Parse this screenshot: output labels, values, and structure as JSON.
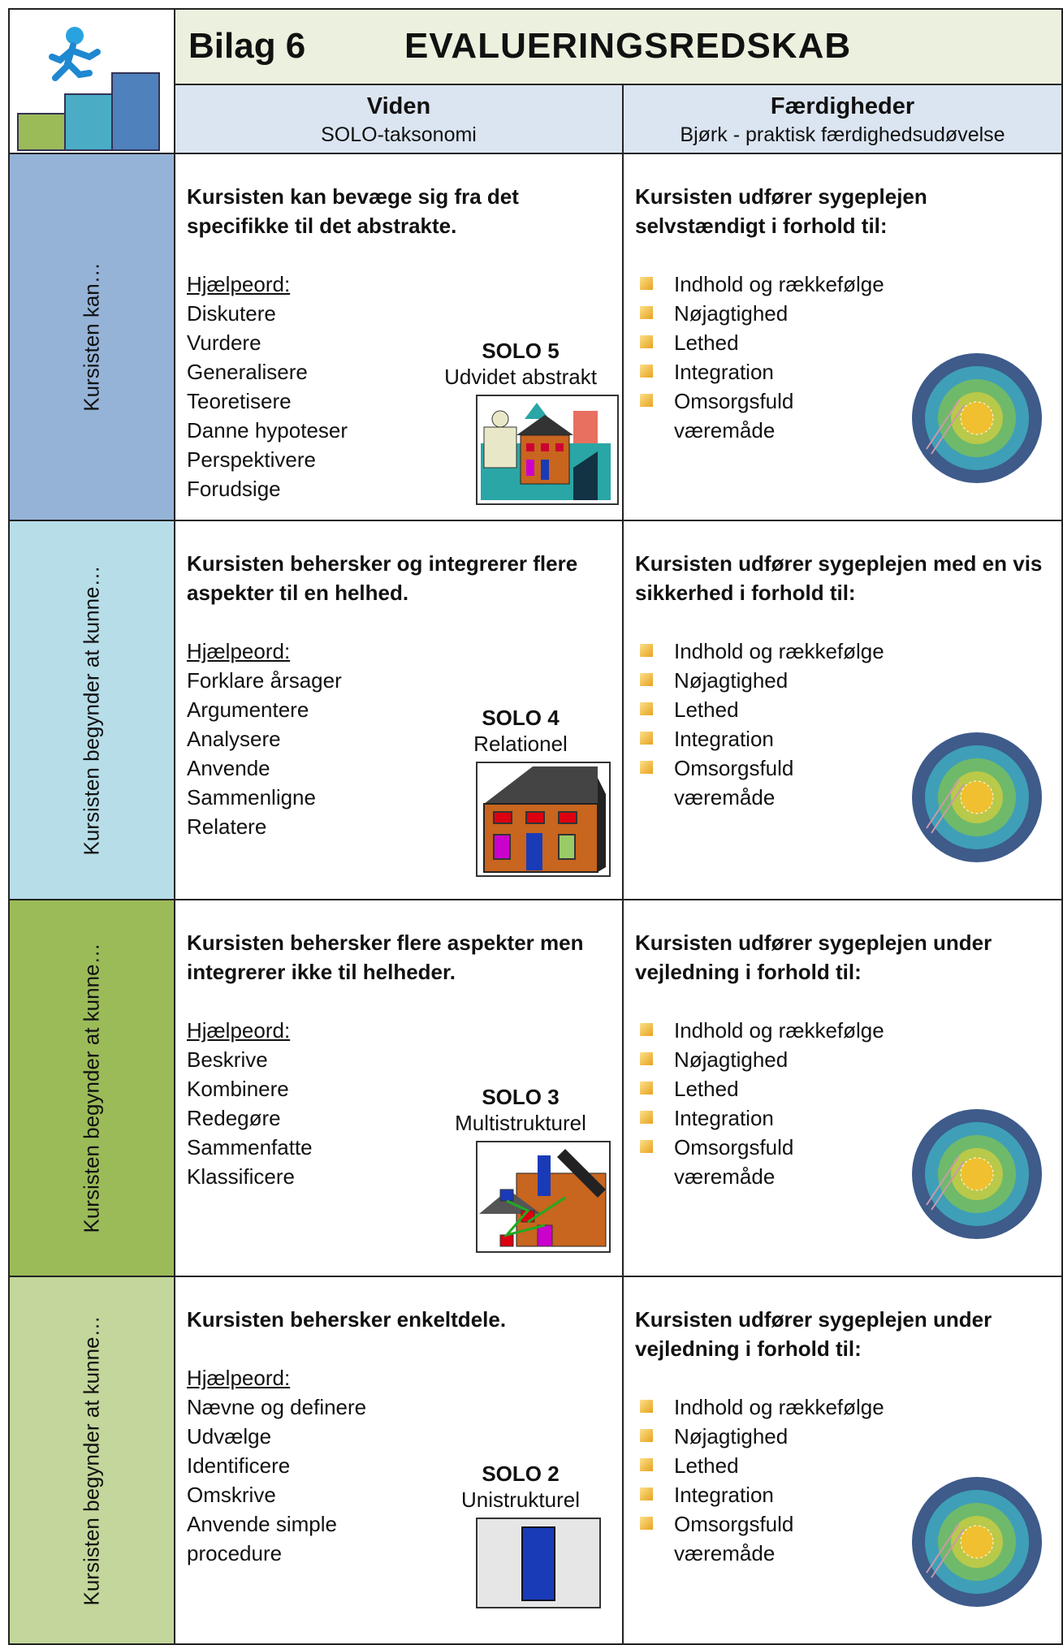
{
  "header": {
    "label": "Bilag 6",
    "title": "EVALUERINGSREDSKAB"
  },
  "columns": [
    {
      "title": "Viden",
      "subtitle": "SOLO-taksonomi"
    },
    {
      "title": "Færdigheder",
      "subtitle": "Bjørk - praktisk færdighedsudøvelse"
    }
  ],
  "rows": [
    {
      "side": "Kursisten kan…",
      "knowledge": "Kursisten kan bevæge sig fra det specifikke til det abstrakte.",
      "keywords_label": "Hjælpeord:",
      "keywords": [
        "Diskutere",
        "Vurdere",
        "Generalisere",
        "Teoretisere",
        "Danne hypoteser",
        "Perspektivere",
        "Forudsige"
      ],
      "solo_level": "SOLO 5",
      "solo_name": "Udvidet abstrakt",
      "skill": "Kursisten udfører sygeplejen selvstændigt i forhold til:",
      "skill_items": [
        "Indhold og rækkefølge",
        "Nøjagtighed",
        "Lethed",
        "Integration",
        "Omsorgsfuld væremåde"
      ]
    },
    {
      "side": "Kursisten begynder at kunne…",
      "knowledge": "Kursisten behersker og integrerer flere aspekter til en helhed.",
      "keywords_label": "Hjælpeord:",
      "keywords": [
        "Forklare årsager",
        "Argumentere",
        "Analysere",
        "Anvende",
        "Sammenligne",
        "Relatere"
      ],
      "solo_level": "SOLO 4",
      "solo_name": "Relationel",
      "skill": "Kursisten udfører sygeplejen med en vis sikkerhed i forhold til:",
      "skill_items": [
        "Indhold og rækkefølge",
        "Nøjagtighed",
        "Lethed",
        "Integration",
        "Omsorgsfuld væremåde"
      ]
    },
    {
      "side": "Kursisten begynder at kunne…",
      "knowledge": "Kursisten behersker flere aspekter men integrerer ikke til helheder.",
      "keywords_label": "Hjælpeord:",
      "keywords": [
        "Beskrive",
        "Kombinere",
        "Redegøre",
        "Sammenfatte",
        "Klassificere"
      ],
      "solo_level": "SOLO 3",
      "solo_name": "Multistrukturel",
      "skill": "Kursisten udfører sygeplejen under vejledning i forhold til:",
      "skill_items": [
        "Indhold og rækkefølge",
        "Nøjagtighed",
        "Lethed",
        "Integration",
        "Omsorgsfuld væremåde"
      ]
    },
    {
      "side": "Kursisten begynder at kunne…",
      "knowledge": "Kursisten behersker enkeltdele.",
      "keywords_label": "Hjælpeord:",
      "keywords": [
        "Nævne og definere",
        "Udvælge",
        "Identificere",
        "Omskrive",
        "Anvende simple procedure"
      ],
      "solo_level": "SOLO 2",
      "solo_name": "Unistrukturel",
      "skill": "Kursisten udfører sygeplejen under vejledning i forhold til:",
      "skill_items": [
        "Indhold og rækkefølge",
        "Nøjagtighed",
        "Lethed",
        "Integration",
        "Omsorgsfuld væremåde"
      ]
    }
  ]
}
